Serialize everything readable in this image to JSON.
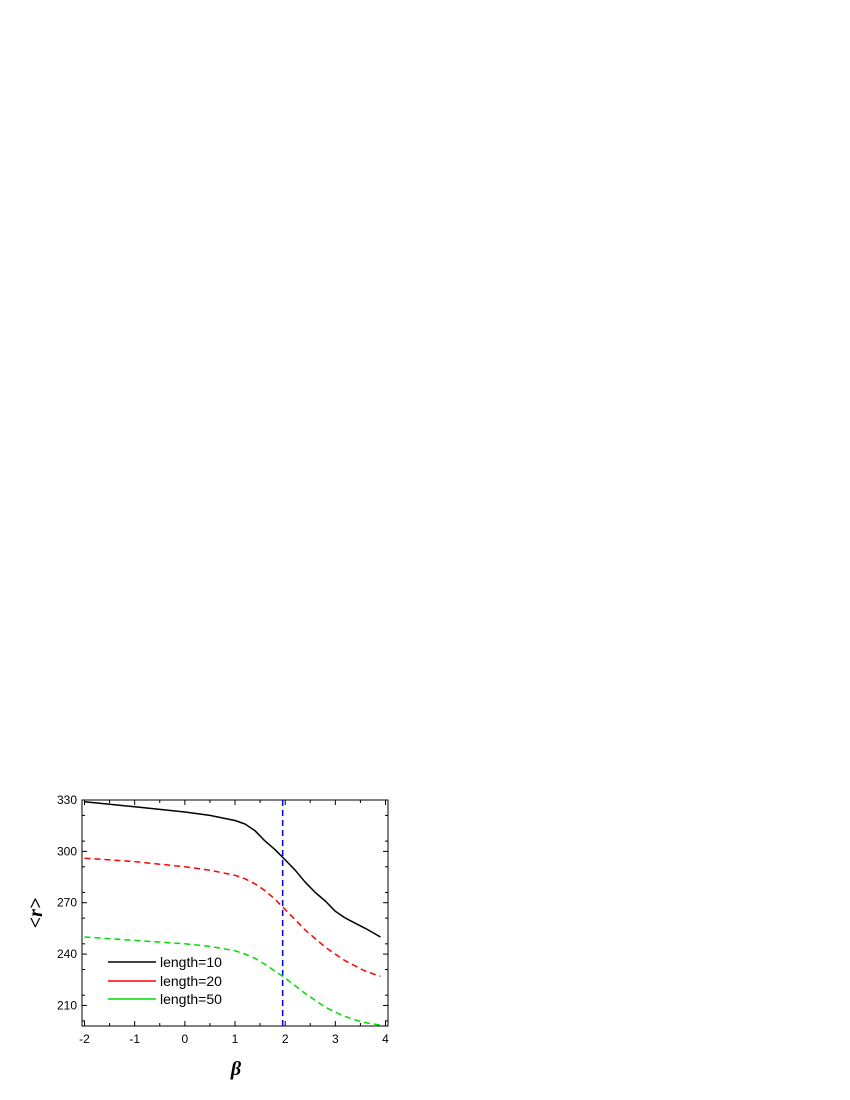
{
  "chart_data": {
    "type": "line",
    "title": "",
    "xlabel": "β",
    "ylabel": "<r>",
    "xlim": [
      -2.05,
      4.05
    ],
    "ylim": [
      198,
      330
    ],
    "xticks": [
      -2,
      -1,
      0,
      1,
      2,
      3,
      4
    ],
    "yticks": [
      210,
      240,
      270,
      300,
      330
    ],
    "xtick_labels": [
      "-2",
      "-1",
      "0",
      "1",
      "2",
      "3",
      "4"
    ],
    "ytick_labels": [
      "210",
      "240",
      "270",
      "300",
      "330"
    ],
    "grid": false,
    "legend_position": "bottom-left",
    "x": [
      -2,
      -1.5,
      -1,
      -0.5,
      0,
      0.5,
      1,
      1.2,
      1.4,
      1.6,
      1.8,
      2,
      2.2,
      2.4,
      2.6,
      2.8,
      3,
      3.2,
      3.4,
      3.6,
      3.9
    ],
    "series": [
      {
        "name": "length=10",
        "color": "#000000",
        "dash": "solid",
        "values": [
          329,
          327.5,
          326,
          324.5,
          323,
          321,
          318,
          316,
          312,
          306,
          301,
          295,
          289,
          282,
          276,
          271,
          265,
          261,
          258,
          255,
          250
        ]
      },
      {
        "name": "length=20",
        "color": "#ff0000",
        "dash": "dashed",
        "values": [
          296,
          295,
          294,
          292.5,
          291,
          289,
          286,
          284,
          281,
          277,
          272,
          266,
          260,
          254,
          249,
          244,
          240,
          236,
          233,
          230,
          227
        ]
      },
      {
        "name": "length=50",
        "color": "#00dd00",
        "dash": "dashed",
        "values": [
          250,
          249,
          248,
          247,
          246,
          244.5,
          242,
          240,
          237.5,
          234,
          230,
          226,
          221.5,
          217,
          213,
          209,
          206,
          203.5,
          201.5,
          200,
          198.5
        ]
      }
    ],
    "vertical_reference_line": {
      "x": 1.95,
      "color": "#0000ff",
      "dash": "dashed"
    }
  }
}
